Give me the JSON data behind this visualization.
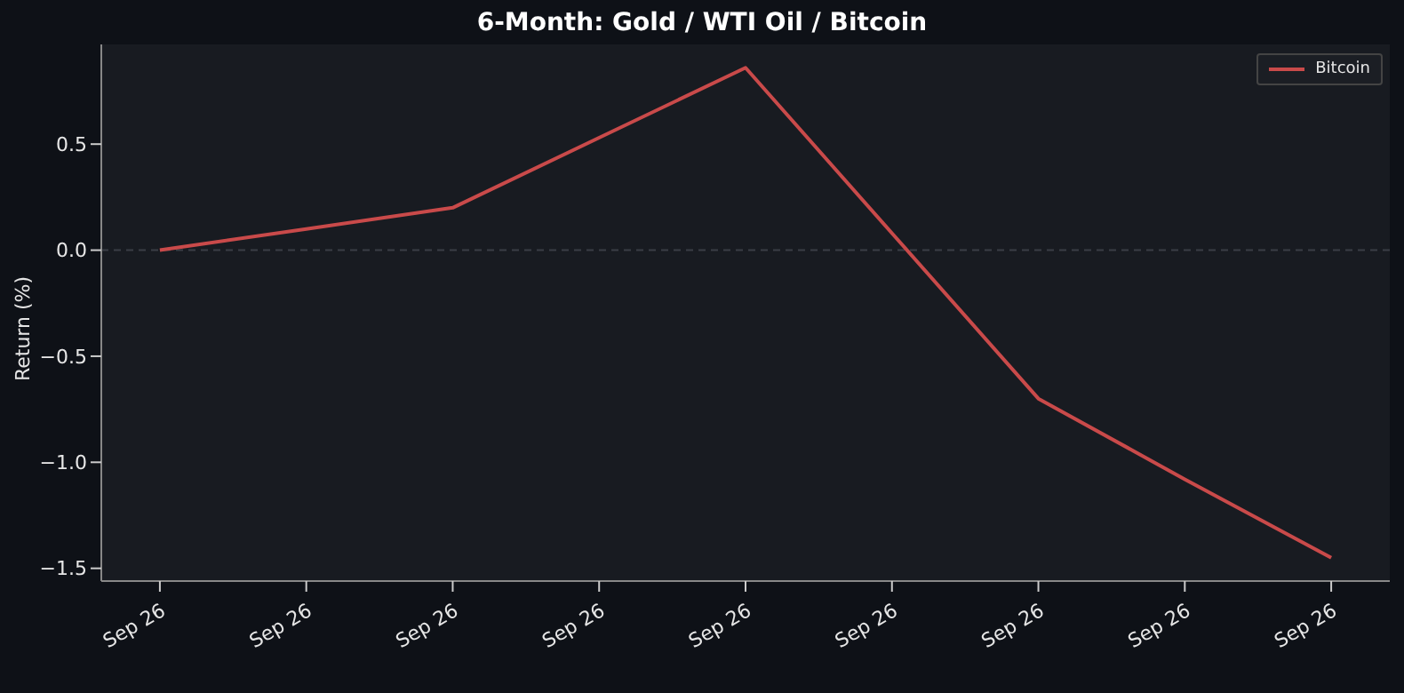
{
  "chart_data": {
    "type": "line",
    "title": "6-Month: Gold / WTI Oil / Bitcoin",
    "ylabel": "Return (%)",
    "categories": [
      "Sep 26",
      "Sep 26",
      "Sep 26",
      "Sep 26",
      "Sep 26",
      "Sep 26",
      "Sep 26",
      "Sep 26",
      "Sep 26"
    ],
    "series": [
      {
        "name": "Bitcoin",
        "color": "#c94a4a",
        "values": [
          0,
          0.1,
          0.2,
          0.53,
          0.86,
          0.08,
          -0.7,
          -1.08,
          -1.45
        ]
      }
    ],
    "ylim": [
      -1.56,
      0.97
    ],
    "yticks": [
      {
        "value": -1.5,
        "label": "−1.5"
      },
      {
        "value": -1,
        "label": "−1.0"
      },
      {
        "value": -0.5,
        "label": "−0.5"
      },
      {
        "value": 0,
        "label": "0.0"
      },
      0.5
    ],
    "ref_lines": [
      {
        "axis": "y",
        "value": 0,
        "color": "#3a3e46",
        "line_style": "dashed"
      }
    ],
    "grid": false,
    "legend": "top right",
    "marker": "none",
    "line_style": "solid"
  }
}
